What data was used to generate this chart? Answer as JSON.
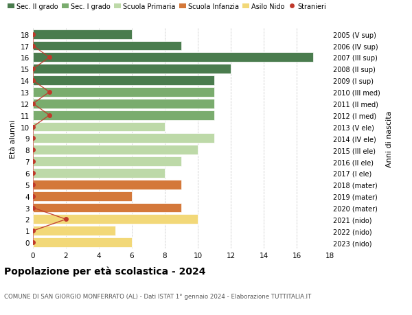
{
  "ages": [
    18,
    17,
    16,
    15,
    14,
    13,
    12,
    11,
    10,
    9,
    8,
    7,
    6,
    5,
    4,
    3,
    2,
    1,
    0
  ],
  "labels_right": [
    "2005 (V sup)",
    "2006 (IV sup)",
    "2007 (III sup)",
    "2008 (II sup)",
    "2009 (I sup)",
    "2010 (III med)",
    "2011 (II med)",
    "2012 (I med)",
    "2013 (V ele)",
    "2014 (IV ele)",
    "2015 (III ele)",
    "2016 (II ele)",
    "2017 (I ele)",
    "2018 (mater)",
    "2019 (mater)",
    "2020 (mater)",
    "2021 (nido)",
    "2022 (nido)",
    "2023 (nido)"
  ],
  "bar_values": [
    6,
    9,
    17,
    12,
    11,
    11,
    11,
    11,
    8,
    11,
    10,
    9,
    8,
    9,
    6,
    9,
    10,
    5,
    6
  ],
  "bar_colors": [
    "#4a7c4e",
    "#4a7c4e",
    "#4a7c4e",
    "#4a7c4e",
    "#4a7c4e",
    "#7aac6e",
    "#7aac6e",
    "#7aac6e",
    "#bdd9a8",
    "#bdd9a8",
    "#bdd9a8",
    "#bdd9a8",
    "#bdd9a8",
    "#d4783a",
    "#d4783a",
    "#d4783a",
    "#f2d878",
    "#f2d878",
    "#f2d878"
  ],
  "stranieri_values": [
    0,
    0,
    1,
    0,
    0,
    1,
    0,
    1,
    0,
    0,
    0,
    0,
    0,
    0,
    0,
    0,
    2,
    0,
    0
  ],
  "legend_labels": [
    "Sec. II grado",
    "Sec. I grado",
    "Scuola Primaria",
    "Scuola Infanzia",
    "Asilo Nido",
    "Stranieri"
  ],
  "legend_colors": [
    "#4a7c4e",
    "#7aac6e",
    "#bdd9a8",
    "#d4783a",
    "#f2d878",
    "#c0392b"
  ],
  "ylabel": "Età alunni",
  "ylabel_right": "Anni di nascita",
  "title": "Popolazione per età scolastica - 2024",
  "subtitle": "COMUNE DI SAN GIORGIO MONFERRATO (AL) - Dati ISTAT 1° gennaio 2024 - Elaborazione TUTTITALIA.IT",
  "xlim": [
    0,
    18
  ],
  "ylim_low": -0.55,
  "ylim_high": 18.55,
  "bar_height": 0.82,
  "background_color": "#ffffff",
  "grid_color": "#cccccc"
}
